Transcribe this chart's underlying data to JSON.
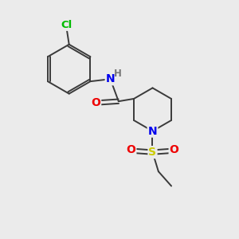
{
  "background_color": "#ebebeb",
  "atom_colors": {
    "C": "#3a3a3a",
    "N": "#0000ee",
    "O": "#ee0000",
    "S": "#cccc00",
    "Cl": "#00bb00",
    "H": "#777777"
  },
  "figsize": [
    3.0,
    3.0
  ],
  "dpi": 100,
  "lw": 1.4,
  "fs": 9.5
}
